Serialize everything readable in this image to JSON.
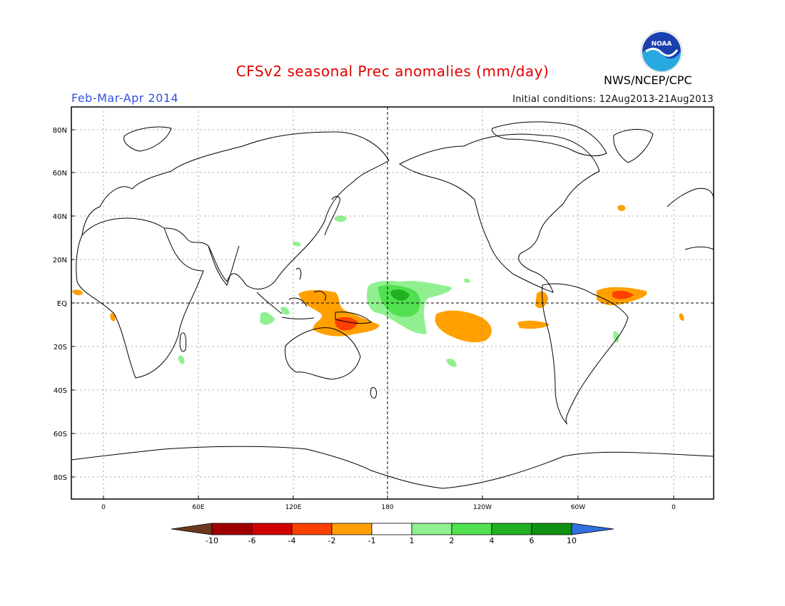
{
  "title": "CFSv2 seasonal Prec anomalies (mm/day)",
  "season": "Feb-Mar-Apr 2014",
  "initial_conditions": "Initial conditions: 12Aug2013-21Aug2013",
  "agency": "NWS/NCEP/CPC",
  "logo_text": "NOAA",
  "map": {
    "lat_ticks": [
      "80N",
      "60N",
      "40N",
      "20N",
      "EQ",
      "20S",
      "40S",
      "60S",
      "80S"
    ],
    "lon_ticks": [
      "0",
      "60E",
      "120E",
      "180",
      "120W",
      "60W",
      "0"
    ]
  },
  "colorbar": {
    "labels": [
      "-10",
      "-6",
      "-4",
      "-2",
      "-1",
      "1",
      "2",
      "4",
      "6",
      "10"
    ],
    "colors": [
      "#6b3a1e",
      "#a00000",
      "#d20000",
      "#ff4000",
      "#ffa000",
      "#ffffff",
      "#90f090",
      "#50e050",
      "#20b020",
      "#109010",
      "#3070e0"
    ]
  }
}
